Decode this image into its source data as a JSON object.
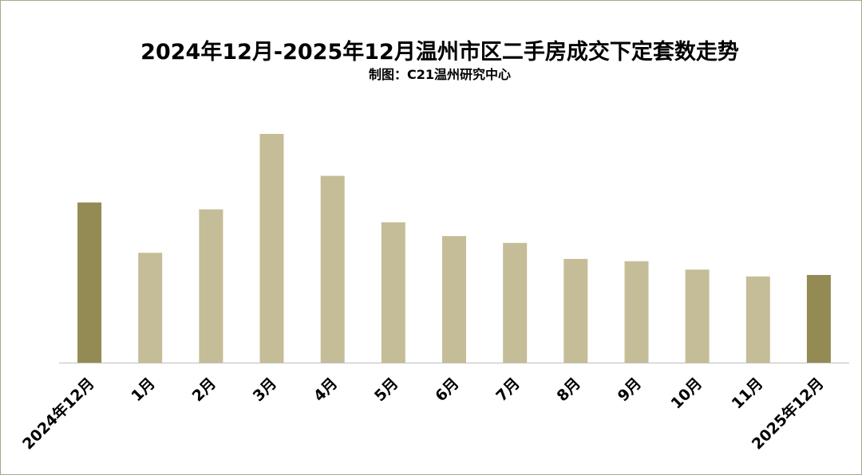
{
  "title": "2024年12月-2025年12月温州市区二手房成交下定套数走势",
  "subtitle": "制图：C21温州研究中心",
  "colors": {
    "highlight_bar": "#948a54",
    "normal_bar": "#c4bd97",
    "axis": "#bfbfbf",
    "border": "#a6a88a"
  },
  "chart_data": {
    "type": "bar",
    "title": "2024年12月-2025年12月温州市区二手房成交下定套数走势",
    "subtitle": "制图：C21温州研究中心",
    "xlabel": "",
    "ylabel": "",
    "ylim": [
      0,
      300
    ],
    "grid": false,
    "legend": "none",
    "categories": [
      "2024年12月",
      "1月",
      "2月",
      "3月",
      "4月",
      "5月",
      "6月",
      "7月",
      "8月",
      "9月",
      "10月",
      "11月",
      "2025年12月"
    ],
    "values": [
      210,
      144,
      201,
      300,
      245,
      184,
      166,
      157,
      136,
      133,
      122,
      113,
      115
    ],
    "highlighted": [
      "2024年12月",
      "2025年12月"
    ]
  }
}
